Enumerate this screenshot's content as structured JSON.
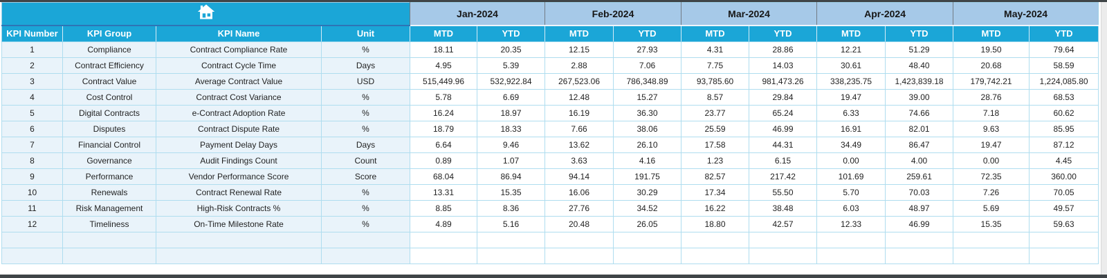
{
  "window": {
    "frame_color": "#3f4447"
  },
  "home_button": {
    "icon": "home-icon"
  },
  "table": {
    "months": [
      "Jan-2024",
      "Feb-2024",
      "Mar-2024",
      "Apr-2024",
      "May-2024"
    ],
    "sub_headers": [
      "MTD",
      "YTD"
    ],
    "left_headers": [
      "KPI Number",
      "KPI Group",
      "KPI Name",
      "Unit"
    ],
    "rows": [
      {
        "num": "1",
        "group": "Compliance",
        "name": "Contract Compliance Rate",
        "unit": "%",
        "values": [
          "18.11",
          "20.35",
          "12.15",
          "27.93",
          "4.31",
          "28.86",
          "12.21",
          "51.29",
          "19.50",
          "79.64"
        ]
      },
      {
        "num": "2",
        "group": "Contract Efficiency",
        "name": "Contract Cycle Time",
        "unit": "Days",
        "values": [
          "4.95",
          "5.39",
          "2.88",
          "7.06",
          "7.75",
          "14.03",
          "30.61",
          "48.40",
          "20.68",
          "58.59"
        ]
      },
      {
        "num": "3",
        "group": "Contract Value",
        "name": "Average Contract Value",
        "unit": "USD",
        "values": [
          "515,449.96",
          "532,922.84",
          "267,523.06",
          "786,348.89",
          "93,785.60",
          "981,473.26",
          "338,235.75",
          "1,423,839.18",
          "179,742.21",
          "1,224,085.80"
        ]
      },
      {
        "num": "4",
        "group": "Cost Control",
        "name": "Contract Cost Variance",
        "unit": "%",
        "values": [
          "5.78",
          "6.69",
          "12.48",
          "15.27",
          "8.57",
          "29.84",
          "19.47",
          "39.00",
          "28.76",
          "68.53"
        ]
      },
      {
        "num": "5",
        "group": "Digital Contracts",
        "name": "e-Contract Adoption Rate",
        "unit": "%",
        "values": [
          "16.24",
          "18.97",
          "16.19",
          "36.30",
          "23.77",
          "65.24",
          "6.33",
          "74.66",
          "7.18",
          "60.62"
        ]
      },
      {
        "num": "6",
        "group": "Disputes",
        "name": "Contract Dispute Rate",
        "unit": "%",
        "values": [
          "18.79",
          "18.33",
          "7.66",
          "38.06",
          "25.59",
          "46.99",
          "16.91",
          "82.01",
          "9.63",
          "85.95"
        ]
      },
      {
        "num": "7",
        "group": "Financial Control",
        "name": "Payment Delay Days",
        "unit": "Days",
        "values": [
          "6.64",
          "9.46",
          "13.62",
          "26.10",
          "17.58",
          "44.31",
          "34.49",
          "86.47",
          "19.47",
          "87.12"
        ]
      },
      {
        "num": "8",
        "group": "Governance",
        "name": "Audit Findings Count",
        "unit": "Count",
        "values": [
          "0.89",
          "1.07",
          "3.63",
          "4.16",
          "1.23",
          "6.15",
          "0.00",
          "4.00",
          "0.00",
          "4.45"
        ]
      },
      {
        "num": "9",
        "group": "Performance",
        "name": "Vendor Performance Score",
        "unit": "Score",
        "values": [
          "68.04",
          "86.94",
          "94.14",
          "191.75",
          "82.57",
          "217.42",
          "101.69",
          "259.61",
          "72.35",
          "360.00"
        ]
      },
      {
        "num": "10",
        "group": "Renewals",
        "name": "Contract Renewal Rate",
        "unit": "%",
        "values": [
          "13.31",
          "15.35",
          "16.06",
          "30.29",
          "17.34",
          "55.50",
          "5.70",
          "70.03",
          "7.26",
          "70.05"
        ]
      },
      {
        "num": "11",
        "group": "Risk Management",
        "name": "High-Risk Contracts %",
        "unit": "%",
        "values": [
          "8.85",
          "8.36",
          "27.76",
          "34.52",
          "16.22",
          "38.48",
          "6.03",
          "48.97",
          "5.69",
          "49.57"
        ]
      },
      {
        "num": "12",
        "group": "Timeliness",
        "name": "On-Time Milestone Rate",
        "unit": "%",
        "values": [
          "4.89",
          "5.16",
          "20.48",
          "26.05",
          "18.80",
          "42.57",
          "12.33",
          "46.99",
          "15.35",
          "59.63"
        ]
      }
    ],
    "empty_row_count": 2
  },
  "colors": {
    "header_cyan": "#1BA6D7",
    "month_blue": "#A6C9E8",
    "row_tint": "#E9F3FA",
    "grid_line": "#AFDDEF",
    "divider_dark_blue": "#2E74B5"
  }
}
